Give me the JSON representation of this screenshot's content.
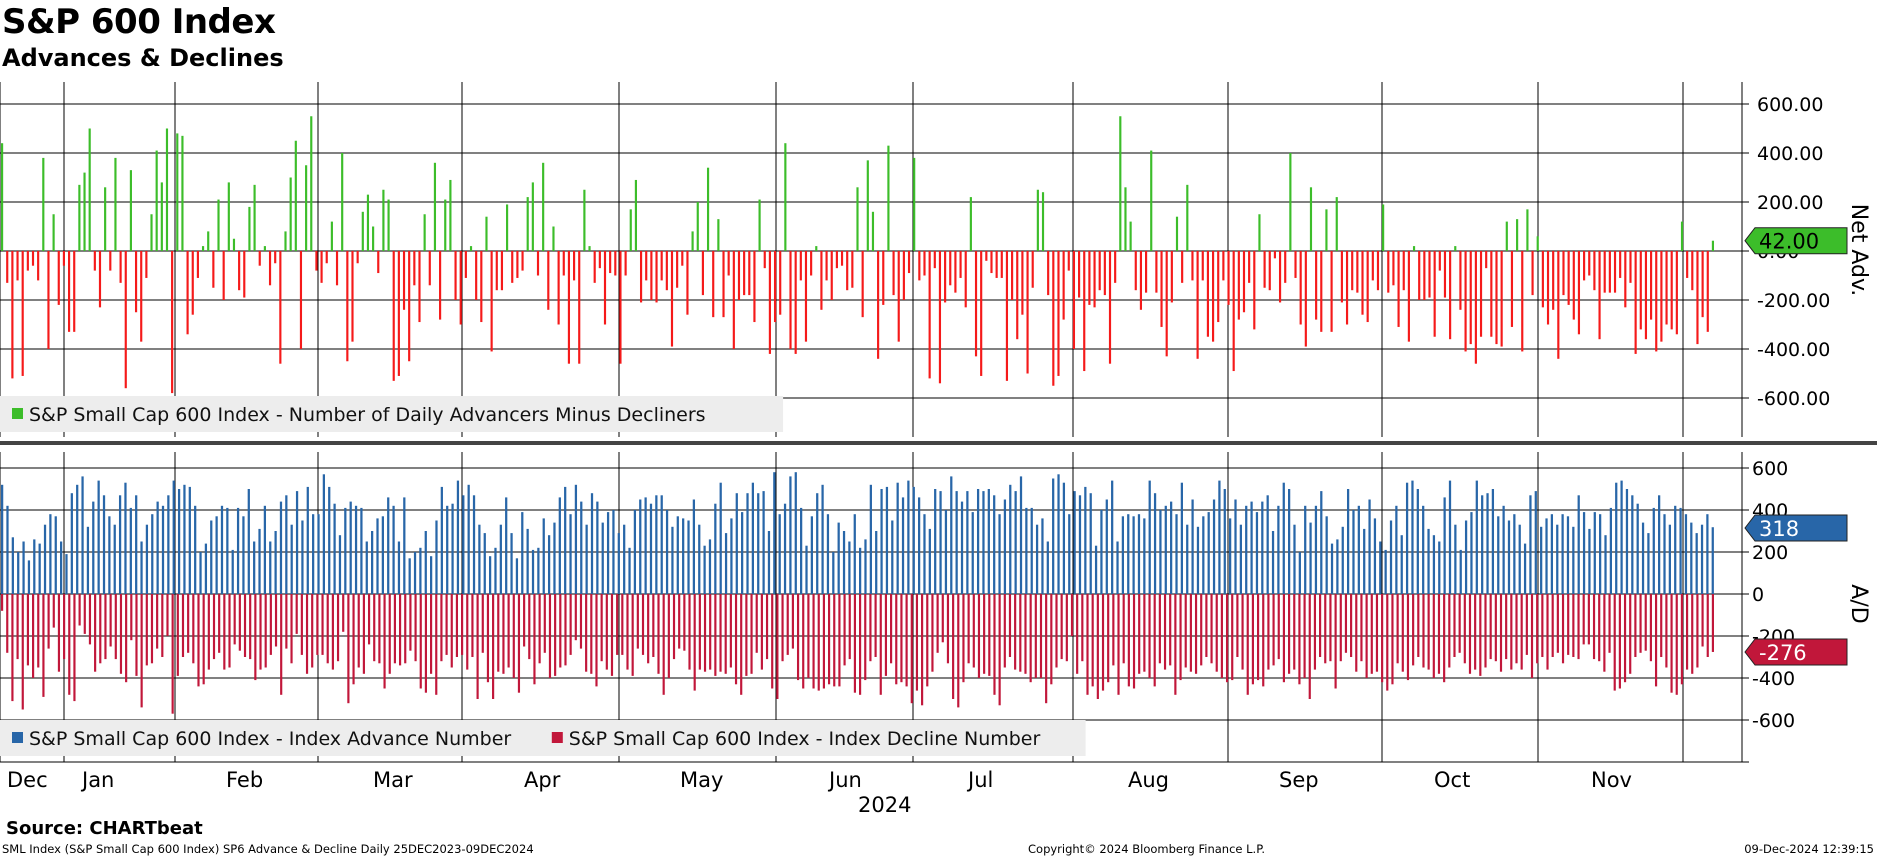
{
  "header": {
    "title": "S&P 600 Index",
    "subtitle": "Advances & Declines"
  },
  "footer": {
    "source": "Source: CHARTbeat",
    "description": "SML Index (S&P Small Cap 600 Index) SP6 Advance & Decline  Daily 25DEC2023-09DEC2024",
    "copyright": "Copyright© 2024 Bloomberg Finance L.P.",
    "timestamp": "09-Dec-2024 12:39:15"
  },
  "colors": {
    "net_positive": "#3cbd2a",
    "net_negative": "#f51a1a",
    "advances": "#2866a8",
    "declines": "#c1173a",
    "net_tag": "#3cbd2a",
    "adv_tag": "#2866a8",
    "dec_tag": "#c1173a",
    "legend_bg": "#ededed"
  },
  "chart_data": [
    {
      "type": "bar",
      "panel": "top",
      "ylabel": "Net Adv.",
      "ylim": [
        -780,
        690
      ],
      "yticks": [
        "600.00",
        "400.00",
        "200.00",
        "0.00",
        "-200.00",
        "-400.00",
        "-600.00"
      ],
      "ytick_values": [
        600,
        400,
        200,
        0,
        -200,
        -400,
        -600
      ],
      "last_value_label": "42.00",
      "last_value": 42,
      "legend": [
        {
          "name": "S&P Small Cap 600 Index - Number of Daily Advancers Minus Decliners",
          "color": "#3cbd2a"
        }
      ],
      "series": [
        {
          "name": "S&P Small Cap 600 Index - Number of Daily Advancers Minus Decliners",
          "values": [
            440,
            -130,
            -520,
            -120,
            -510,
            -80,
            -60,
            -120,
            380,
            -400,
            150,
            -220,
            -60,
            -330,
            -330,
            270,
            320,
            500,
            -80,
            -230,
            260,
            -80,
            380,
            -130,
            -560,
            330,
            -250,
            -370,
            -110,
            150,
            410,
            280,
            500,
            -580,
            480,
            470,
            -340,
            -260,
            -110,
            20,
            80,
            -150,
            210,
            -200,
            280,
            50,
            -160,
            -190,
            180,
            270,
            -60,
            20,
            -140,
            -50,
            -460,
            80,
            300,
            450,
            -400,
            350,
            550,
            -80,
            -130,
            -50,
            120,
            -140,
            400,
            -450,
            -370,
            -50,
            160,
            230,
            100,
            -90,
            250,
            210,
            -530,
            -510,
            -240,
            -450,
            -140,
            -290,
            150,
            -140,
            360,
            -280,
            210,
            290,
            -200,
            -300,
            -110,
            20,
            -200,
            -290,
            140,
            -410,
            -160,
            -160,
            190,
            -130,
            -110,
            -80,
            220,
            280,
            -100,
            360,
            -240,
            100,
            -300,
            -100,
            -460,
            -120,
            -460,
            250,
            20,
            -130,
            -70,
            -300,
            -90,
            -100,
            -460,
            -100,
            170,
            290,
            -210,
            -120,
            -200,
            -210,
            -120,
            -160,
            -390,
            -150,
            -60,
            -260,
            80,
            200,
            -180,
            340,
            -270,
            130,
            -270,
            -100,
            -400,
            -200,
            -180,
            -180,
            -290,
            210,
            -70,
            -420,
            -290,
            -260,
            440,
            -400,
            -420,
            -120,
            -370,
            -100,
            20,
            -240,
            -120,
            -200,
            -70,
            -60,
            -160,
            -150,
            260,
            -270,
            370,
            160,
            -440,
            -220,
            430,
            -180,
            -370,
            -200,
            -90,
            380,
            -120,
            -100,
            -520,
            -70,
            -540,
            -210,
            -140,
            -170,
            -110,
            -230,
            220,
            -430,
            -510,
            -40,
            -90,
            -110,
            -110,
            -530,
            -200,
            -360,
            -260,
            -500,
            -150,
            250,
            240,
            -180,
            -550,
            -510,
            -280,
            -80,
            -400,
            -190,
            -490,
            -220,
            -230,
            -160,
            -180,
            -460,
            -130,
            550,
            260,
            120,
            -160,
            -240,
            -170,
            410,
            -170,
            -310,
            -430,
            -210,
            140,
            -130,
            270,
            -120,
            -440,
            -120,
            -350,
            -370,
            -290,
            -120,
            -220,
            -490,
            -280,
            -250,
            -130,
            -320,
            150,
            -150,
            -160,
            -30,
            -210,
            -130,
            400,
            -110,
            -300,
            -390,
            260,
            -280,
            -330,
            170,
            -330,
            220,
            -210,
            -300,
            -160,
            -170,
            -260,
            -290,
            -120,
            -160,
            190,
            -170,
            -140,
            -310,
            -160,
            -370,
            20,
            -200,
            -200,
            -190,
            -350,
            -80,
            -190,
            -360,
            20,
            -240,
            -410,
            -380,
            -460,
            -350,
            -70,
            -350,
            -380,
            -390,
            120,
            -310,
            130,
            -410,
            170,
            -180,
            60,
            -230,
            -300,
            -240,
            -440,
            -180,
            -220,
            -280,
            -340,
            -120,
            -100,
            -160,
            -360,
            -170,
            -170,
            -170,
            -110,
            -230,
            -130,
            -420,
            -320,
            -360,
            -280,
            -410,
            -370,
            -300,
            -320,
            -340,
            120,
            -110,
            -160,
            -380,
            -270,
            -330,
            42
          ]
        }
      ]
    },
    {
      "type": "bar",
      "panel": "bottom",
      "ylabel": "A/D",
      "ylim": [
        -800,
        700
      ],
      "yticks": [
        "600",
        "400",
        "200",
        "0",
        "-200",
        "-400",
        "-600"
      ],
      "ytick_values": [
        600,
        400,
        200,
        0,
        -200,
        -400,
        -600
      ],
      "advance_last_label": "318",
      "decline_last_label": "-276",
      "legend": [
        {
          "name": "S&P Small Cap 600 Index - Index Advance Number",
          "color": "#2866a8"
        },
        {
          "name": "S&P Small Cap 600 Index - Index Decline Number",
          "color": "#c1173a"
        }
      ],
      "categories_note": "daily trading sessions 25DEC2023-09DEC2024",
      "series": [
        {
          "name": "S&P Small Cap 600 Index - Index Advance Number",
          "values": [
            520,
            420,
            270,
            200,
            250,
            160,
            260,
            240,
            330,
            380,
            370,
            250,
            190,
            480,
            520,
            560,
            320,
            440,
            540,
            470,
            370,
            330,
            470,
            530,
            410,
            470,
            250,
            330,
            380,
            440,
            420,
            470,
            540,
            500,
            520,
            510,
            420,
            200,
            240,
            350,
            370,
            420,
            410,
            210,
            410,
            370,
            500,
            250,
            310,
            420,
            250,
            300,
            440,
            470,
            330,
            490,
            350,
            510,
            380,
            380,
            570,
            510,
            430,
            280,
            410,
            440,
            420,
            410,
            250,
            300,
            360,
            370,
            460,
            420,
            250,
            460,
            170,
            200,
            220,
            300,
            180,
            350,
            510,
            420,
            430,
            540,
            470,
            520,
            470,
            330,
            290,
            180,
            220,
            330,
            460,
            290,
            170,
            390,
            310,
            210,
            220,
            360,
            280,
            340,
            460,
            510,
            380,
            520,
            440,
            330,
            480,
            440,
            340,
            390,
            400,
            290,
            330,
            220,
            400,
            450,
            460,
            430,
            470,
            470,
            400,
            320,
            370,
            360,
            350,
            450,
            330,
            230,
            260,
            430,
            530,
            290,
            360,
            480,
            390,
            480,
            530,
            480,
            490,
            300,
            580,
            380,
            430,
            560,
            580,
            410,
            230,
            370,
            480,
            520,
            380,
            200,
            340,
            300,
            250,
            380,
            220,
            260,
            520,
            300,
            500,
            510,
            350,
            530,
            460,
            540,
            510,
            460,
            380,
            310,
            500,
            490,
            400,
            560,
            490,
            440,
            490,
            390,
            500,
            490,
            500,
            470,
            380,
            450,
            520,
            490,
            560,
            410,
            410,
            330,
            360,
            250,
            550,
            570,
            530,
            380,
            490,
            470,
            510,
            480,
            230,
            400,
            450,
            540,
            250,
            370,
            380,
            370,
            380,
            360,
            540,
            480,
            400,
            420,
            440,
            380,
            530,
            330,
            450,
            320,
            370,
            390,
            450,
            540,
            500,
            360,
            450,
            330,
            420,
            440,
            390,
            440,
            470,
            300,
            420,
            530,
            500,
            330,
            200,
            420,
            340,
            420,
            490,
            370,
            240,
            260,
            320,
            500,
            400,
            420,
            310,
            450,
            360,
            250,
            210,
            350,
            420,
            280,
            530,
            540,
            500,
            420,
            310,
            280,
            250,
            460,
            540,
            330,
            210,
            350,
            390,
            540,
            470,
            480,
            500,
            370,
            420,
            350,
            380,
            330,
            240,
            470,
            490,
            320,
            360,
            380,
            330,
            380,
            370,
            320,
            470,
            390,
            310,
            390,
            380,
            280,
            410,
            530,
            540,
            500,
            470,
            430,
            340,
            290,
            410,
            470,
            380,
            330,
            420,
            410,
            380,
            340,
            290,
            330,
            380,
            318
          ]
        },
        {
          "name": "S&P Small Cap 600 Index - Index Decline Number",
          "values": [
            -80,
            -280,
            -510,
            -310,
            -550,
            -340,
            -400,
            -350,
            -490,
            -260,
            -160,
            -370,
            -310,
            -480,
            -510,
            -150,
            -190,
            -240,
            -370,
            -330,
            -310,
            -250,
            -310,
            -380,
            -420,
            -220,
            -390,
            -540,
            -340,
            -330,
            -260,
            -300,
            -200,
            -570,
            -390,
            -300,
            -280,
            -330,
            -440,
            -430,
            -360,
            -310,
            -280,
            -360,
            -350,
            -240,
            -270,
            -300,
            -310,
            -410,
            -360,
            -350,
            -290,
            -250,
            -480,
            -260,
            -330,
            -190,
            -290,
            -380,
            -350,
            -290,
            -290,
            -330,
            -360,
            -320,
            -180,
            -520,
            -430,
            -350,
            -380,
            -240,
            -320,
            -330,
            -450,
            -380,
            -330,
            -340,
            -330,
            -270,
            -320,
            -450,
            -470,
            -380,
            -480,
            -320,
            -290,
            -350,
            -300,
            -290,
            -360,
            -300,
            -500,
            -280,
            -420,
            -500,
            -370,
            -380,
            -350,
            -400,
            -470,
            -250,
            -310,
            -430,
            -330,
            -280,
            -400,
            -390,
            -350,
            -340,
            -290,
            -220,
            -260,
            -370,
            -380,
            -440,
            -320,
            -360,
            -390,
            -290,
            -290,
            -360,
            -390,
            -260,
            -290,
            -330,
            -300,
            -380,
            -480,
            -400,
            -310,
            -260,
            -270,
            -360,
            -460,
            -360,
            -370,
            -360,
            -390,
            -370,
            -380,
            -350,
            -430,
            -480,
            -390,
            -380,
            -280,
            -360,
            -310,
            -450,
            -500,
            -320,
            -290,
            -260,
            -410,
            -450,
            -400,
            -450,
            -460,
            -450,
            -430,
            -440,
            -440,
            -340,
            -310,
            -470,
            -480,
            -410,
            -320,
            -300,
            -480,
            -390,
            -330,
            -430,
            -420,
            -440,
            -520,
            -460,
            -530,
            -440,
            -370,
            -280,
            -230,
            -330,
            -500,
            -540,
            -420,
            -330,
            -350,
            -400,
            -380,
            -390,
            -480,
            -530,
            -350,
            -300,
            -360,
            -370,
            -380,
            -420,
            -400,
            -400,
            -520,
            -430,
            -350,
            -310,
            -320,
            -200,
            -380,
            -320,
            -480,
            -440,
            -500,
            -460,
            -420,
            -340,
            -480,
            -330,
            -440,
            -450,
            -380,
            -370,
            -400,
            -440,
            -330,
            -360,
            -340,
            -480,
            -410,
            -350,
            -370,
            -380,
            -340,
            -300,
            -330,
            -370,
            -400,
            -420,
            -410,
            -300,
            -360,
            -480,
            -430,
            -410,
            -440,
            -360,
            -340,
            -310,
            -420,
            -380,
            -360,
            -430,
            -400,
            -500,
            -360,
            -300,
            -330,
            -320,
            -450,
            -320,
            -280,
            -300,
            -370,
            -320,
            -400,
            -380,
            -370,
            -420,
            -460,
            -430,
            -330,
            -370,
            -410,
            -340,
            -300,
            -350,
            -360,
            -400,
            -380,
            -420,
            -350,
            -300,
            -280,
            -330,
            -380,
            -360,
            -390,
            -350,
            -310,
            -320,
            -370,
            -310,
            -360,
            -330,
            -360,
            -290,
            -400,
            -330,
            -300,
            -360,
            -300,
            -280,
            -330,
            -290,
            -300,
            -310,
            -240,
            -240,
            -310,
            -320,
            -370,
            -280,
            -460,
            -450,
            -420,
            -380,
            -300,
            -280,
            -270,
            -320,
            -440,
            -300,
            -350,
            -470,
            -480,
            -430,
            -360,
            -380,
            -350,
            -250,
            -300,
            -276
          ]
        }
      ]
    }
  ],
  "x_axis": {
    "months": [
      "Dec",
      "Jan",
      "Feb",
      "Mar",
      "Apr",
      "May",
      "Jun",
      "Jul",
      "Aug",
      "Sep",
      "Oct",
      "Nov"
    ],
    "year": "2024"
  }
}
